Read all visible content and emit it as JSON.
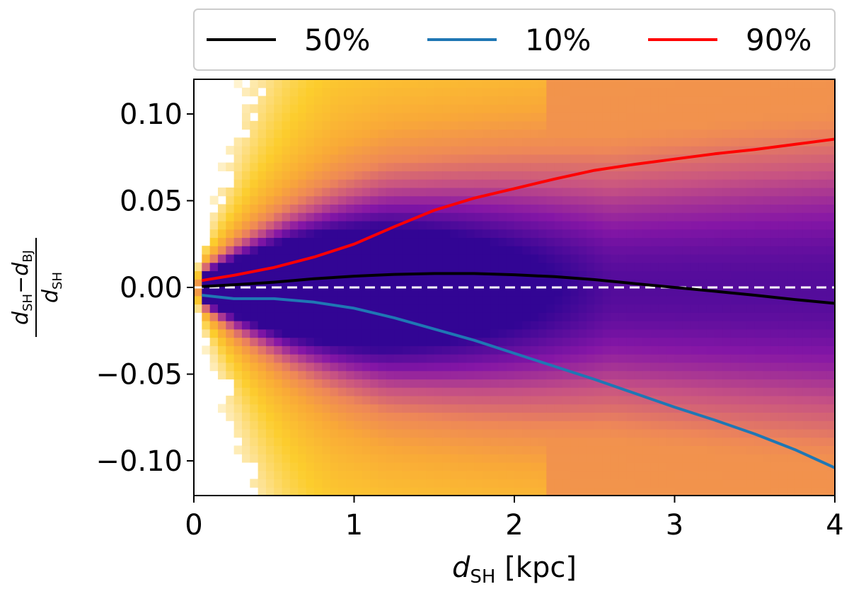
{
  "chart_data": {
    "type": "heatmap",
    "title": "",
    "xlabel": {
      "symbol": "d",
      "subscript": "SH",
      "unit": "[kpc]"
    },
    "ylabel": {
      "numerator": {
        "term1": "d",
        "sub1": "SH",
        "op": "−",
        "term2": "d",
        "sub2": "BJ"
      },
      "denominator": {
        "term": "d",
        "sub": "SH"
      }
    },
    "xlim": [
      0,
      4
    ],
    "ylim": [
      -0.12,
      0.12
    ],
    "x_ticks": [
      {
        "value": 0,
        "label": "0"
      },
      {
        "value": 1,
        "label": "1"
      },
      {
        "value": 2,
        "label": "2"
      },
      {
        "value": 3,
        "label": "3"
      },
      {
        "value": 4,
        "label": "4"
      }
    ],
    "y_ticks": [
      {
        "value": 0.1,
        "label": "0.10"
      },
      {
        "value": 0.05,
        "label": "0.05"
      },
      {
        "value": 0.0,
        "label": "0.00"
      },
      {
        "value": -0.05,
        "label": "−0.05"
      },
      {
        "value": -0.1,
        "label": "−0.10"
      }
    ],
    "colormap": "plasma",
    "zero_reference_line": {
      "y": 0,
      "color": "#ffffff",
      "style": "dashed"
    },
    "legend_position": "top-outside",
    "series": [
      {
        "name": "50%",
        "color": "#000000",
        "x": [
          0.05,
          0.25,
          0.5,
          0.75,
          1.0,
          1.25,
          1.5,
          1.75,
          2.0,
          2.25,
          2.5,
          2.75,
          3.0,
          3.25,
          3.5,
          3.75,
          4.0
        ],
        "y": [
          0.0005,
          0.0015,
          0.003,
          0.005,
          0.0065,
          0.0075,
          0.008,
          0.008,
          0.0073,
          0.0062,
          0.0045,
          0.0022,
          0.0,
          -0.0022,
          -0.0045,
          -0.007,
          -0.0092
        ]
      },
      {
        "name": "10%",
        "color": "#1f77b4",
        "x": [
          0.05,
          0.25,
          0.5,
          0.75,
          1.0,
          1.25,
          1.5,
          1.75,
          2.0,
          2.25,
          2.5,
          2.75,
          3.0,
          3.25,
          3.5,
          3.75,
          4.0
        ],
        "y": [
          -0.0045,
          -0.0065,
          -0.0065,
          -0.0085,
          -0.012,
          -0.0175,
          -0.024,
          -0.0305,
          -0.038,
          -0.0455,
          -0.053,
          -0.061,
          -0.069,
          -0.0765,
          -0.0845,
          -0.0935,
          -0.104
        ]
      },
      {
        "name": "90%",
        "color": "#ff0000",
        "x": [
          0.05,
          0.25,
          0.5,
          0.75,
          1.0,
          1.25,
          1.5,
          1.75,
          2.0,
          2.25,
          2.5,
          2.75,
          3.0,
          3.25,
          3.5,
          3.75,
          4.0
        ],
        "y": [
          0.004,
          0.007,
          0.0115,
          0.0175,
          0.025,
          0.035,
          0.0445,
          0.0515,
          0.057,
          0.0625,
          0.0675,
          0.071,
          0.074,
          0.077,
          0.0795,
          0.0825,
          0.0855
        ]
      }
    ]
  }
}
